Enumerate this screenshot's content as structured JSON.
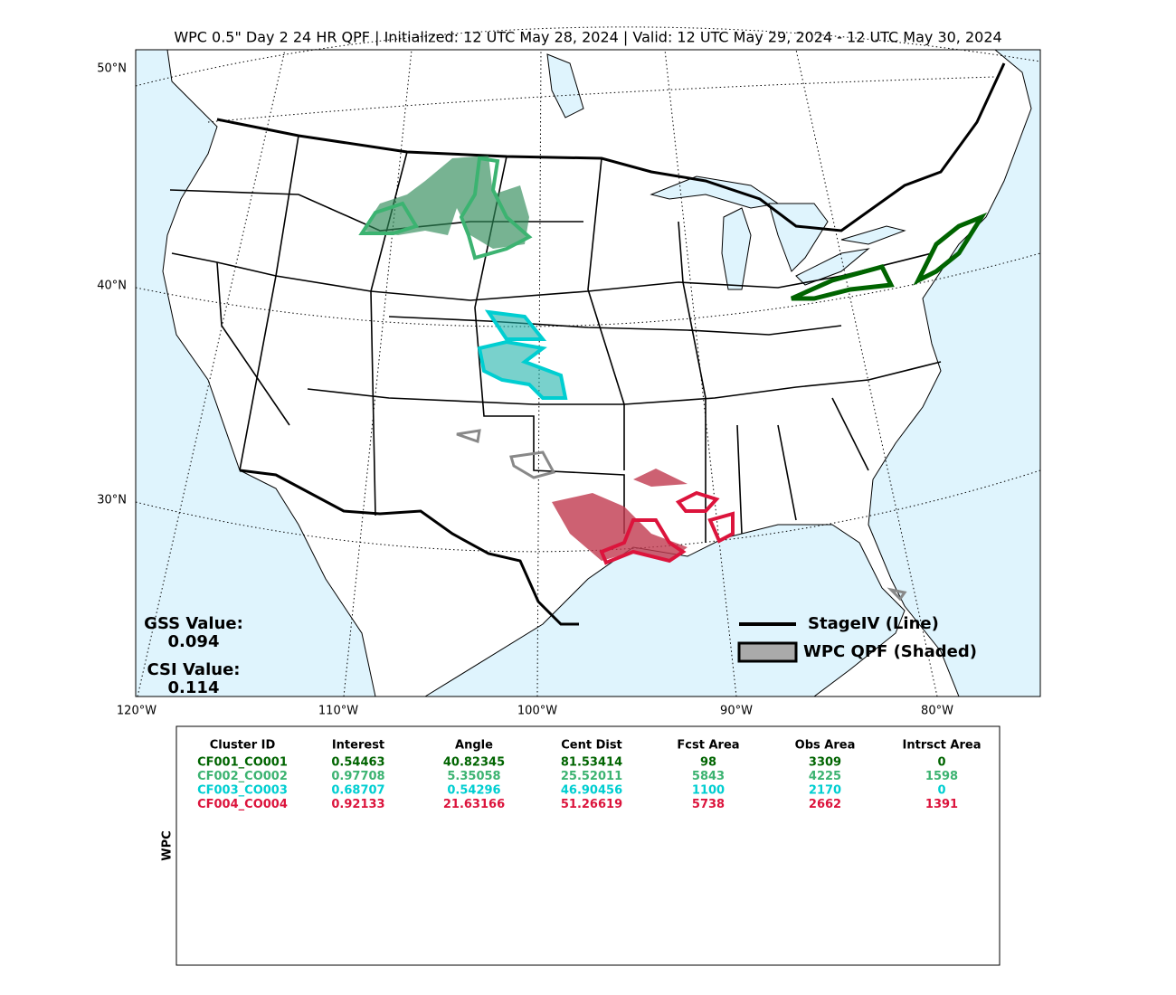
{
  "title": "WPC 0.5\" Day 2 24 HR QPF | Initialized: 12 UTC May 28, 2024 | Valid: 12 UTC May 29, 2024 - 12 UTC May 30, 2024",
  "map": {
    "lat_labels": [
      "50°N",
      "40°N",
      "30°N"
    ],
    "lon_labels": [
      "120°W",
      "110°W",
      "100°W",
      "90°W",
      "80°W"
    ],
    "stats": {
      "gss_label": "GSS Value:",
      "gss": 0.094,
      "csi_label": "CSI Value:",
      "csi": 0.114
    },
    "legend": {
      "line": "StageIV (Line)",
      "shaded": "WPC QPF (Shaded)"
    }
  },
  "table": {
    "side_label": "WPC",
    "columns": [
      "Cluster ID",
      "Interest",
      "Angle",
      "Cent Dist",
      "Fcst Area",
      "Obs Area",
      "Intrsct Area"
    ],
    "rows": [
      [
        "CF001_CO001",
        0.54463,
        40.82345,
        81.53414,
        98,
        3309,
        0
      ],
      [
        "CF002_CO002",
        0.97708,
        5.35058,
        25.52011,
        5843,
        4225,
        1598
      ],
      [
        "CF003_CO003",
        0.68707,
        0.54296,
        46.90456,
        1100,
        2170,
        0
      ],
      [
        "CF004_CO004",
        0.92133,
        21.63166,
        51.26619,
        5738,
        2662,
        1391
      ]
    ],
    "row_colors": [
      "#006400",
      "#3cb371",
      "#00ced1",
      "#dc143c"
    ]
  }
}
